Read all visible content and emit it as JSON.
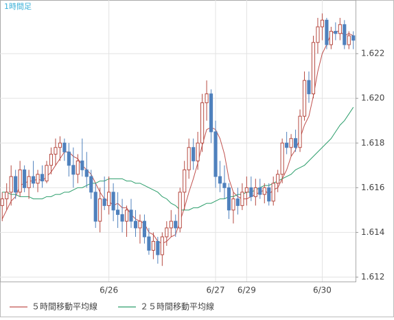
{
  "chart_data": {
    "type": "candlestick",
    "title": "1時間足",
    "categories": [
      null,
      null,
      null,
      null,
      null,
      null,
      null,
      null,
      null,
      null,
      null,
      null,
      null,
      null,
      null,
      null,
      null,
      null,
      null,
      null,
      null,
      null,
      null,
      null,
      "6/26",
      null,
      null,
      null,
      null,
      null,
      null,
      null,
      null,
      null,
      null,
      null,
      null,
      null,
      null,
      null,
      null,
      null,
      null,
      null,
      null,
      null,
      null,
      null,
      "6/27",
      null,
      null,
      null,
      null,
      null,
      null,
      "6/29",
      null,
      null,
      null,
      null,
      null,
      null,
      null,
      null,
      null,
      null,
      null,
      null,
      null,
      null,
      null,
      null,
      "6/30",
      null,
      null,
      null,
      null,
      null,
      null,
      null
    ],
    "open": [
      1.6152,
      1.6155,
      1.6158,
      1.6165,
      1.6158,
      1.6168,
      1.616,
      1.6165,
      1.6162,
      1.6166,
      1.6163,
      1.617,
      1.6175,
      1.6178,
      1.618,
      1.6176,
      1.617,
      1.6166,
      1.6172,
      1.6168,
      1.6165,
      1.6158,
      1.6145,
      1.6155,
      1.6152,
      1.6158,
      1.615,
      1.6148,
      1.6145,
      1.615,
      1.6145,
      1.6142,
      1.6145,
      1.6138,
      1.6132,
      1.6136,
      1.613,
      1.6138,
      1.6142,
      1.6145,
      1.6142,
      1.6158,
      1.6168,
      1.6178,
      1.6172,
      1.618,
      1.6198,
      1.6202,
      1.6185,
      1.6165,
      1.6162,
      1.616,
      1.615,
      1.6155,
      1.6152,
      1.6158,
      1.616,
      1.6156,
      1.616,
      1.6157,
      1.616,
      1.6154,
      1.6162,
      1.6166,
      1.618,
      1.6178,
      1.6182,
      1.6178,
      1.6192,
      1.6208,
      1.6202,
      1.6225,
      1.6232,
      1.6235,
      1.6224,
      1.623,
      1.6229,
      1.6233,
      1.6224,
      1.6228
    ],
    "high": [
      1.6158,
      1.6162,
      1.617,
      1.6168,
      1.6172,
      1.617,
      1.6168,
      1.6172,
      1.6168,
      1.617,
      1.6172,
      1.6178,
      1.6182,
      1.6183,
      1.6182,
      1.618,
      1.6178,
      1.6175,
      1.6182,
      1.6176,
      1.6168,
      1.6162,
      1.616,
      1.6165,
      1.6165,
      1.6162,
      1.6158,
      1.6155,
      1.6152,
      1.6155,
      1.615,
      1.6148,
      1.6148,
      1.6142,
      1.614,
      1.6138,
      1.614,
      1.6145,
      1.615,
      1.6148,
      1.616,
      1.6172,
      1.6182,
      1.6182,
      1.6185,
      1.6202,
      1.6208,
      1.6204,
      1.619,
      1.6172,
      1.617,
      1.6162,
      1.6158,
      1.616,
      1.6162,
      1.6165,
      1.6165,
      1.6164,
      1.6164,
      1.6162,
      1.6162,
      1.6165,
      1.6168,
      1.6182,
      1.6185,
      1.6184,
      1.6186,
      1.6195,
      1.6212,
      1.6212,
      1.6228,
      1.6236,
      1.6238,
      1.6236,
      1.6232,
      1.6234,
      1.6236,
      1.6235,
      1.623,
      1.623
    ],
    "low": [
      1.6145,
      1.615,
      1.6152,
      1.6155,
      1.6156,
      1.6158,
      1.6155,
      1.616,
      1.6158,
      1.616,
      1.6162,
      1.6166,
      1.617,
      1.6172,
      1.6172,
      1.6165,
      1.616,
      1.6162,
      1.6165,
      1.616,
      1.6155,
      1.6142,
      1.614,
      1.615,
      1.6148,
      1.6145,
      1.6142,
      1.614,
      1.6138,
      1.6142,
      1.6138,
      1.6135,
      1.6135,
      1.613,
      1.6128,
      1.6126,
      1.6125,
      1.6134,
      1.6138,
      1.6138,
      1.614,
      1.615,
      1.6164,
      1.6168,
      1.6168,
      1.6176,
      1.619,
      1.618,
      1.616,
      1.6158,
      1.6155,
      1.6146,
      1.6144,
      1.6148,
      1.615,
      1.6152,
      1.6154,
      1.6152,
      1.6155,
      1.6153,
      1.6152,
      1.6152,
      1.6158,
      1.6162,
      1.6175,
      1.6174,
      1.6176,
      1.6176,
      1.619,
      1.6198,
      1.62,
      1.622,
      1.6226,
      1.6222,
      1.6222,
      1.6226,
      1.6226,
      1.6222,
      1.6222,
      1.6222
    ],
    "close": [
      1.6155,
      1.6158,
      1.6165,
      1.6158,
      1.6168,
      1.616,
      1.6165,
      1.6162,
      1.6166,
      1.6163,
      1.617,
      1.6175,
      1.6178,
      1.618,
      1.6176,
      1.617,
      1.6166,
      1.6172,
      1.6168,
      1.6165,
      1.6158,
      1.6145,
      1.6155,
      1.6152,
      1.6158,
      1.615,
      1.6148,
      1.6145,
      1.615,
      1.6145,
      1.6142,
      1.6145,
      1.6138,
      1.6132,
      1.6136,
      1.613,
      1.6138,
      1.6142,
      1.6145,
      1.6142,
      1.6158,
      1.6168,
      1.6178,
      1.6172,
      1.618,
      1.6198,
      1.6202,
      1.6185,
      1.6165,
      1.6162,
      1.616,
      1.615,
      1.6155,
      1.6152,
      1.6158,
      1.616,
      1.6156,
      1.616,
      1.6157,
      1.616,
      1.6154,
      1.6162,
      1.6166,
      1.618,
      1.6178,
      1.6182,
      1.6178,
      1.6192,
      1.6208,
      1.6202,
      1.6225,
      1.6232,
      1.6235,
      1.6224,
      1.623,
      1.6229,
      1.6233,
      1.6224,
      1.6228,
      1.6226
    ],
    "up_color": "#b5483f",
    "down_color": "#4f81bd",
    "series": [
      {
        "name": "５時間移動平均線",
        "color": "#c0504d",
        "values": [
          1.6146,
          1.615,
          1.6154,
          1.6156,
          1.6161,
          1.6162,
          1.6163,
          1.6163,
          1.6164,
          1.6163,
          1.6165,
          1.6167,
          1.617,
          1.6173,
          1.6176,
          1.6176,
          1.6174,
          1.6173,
          1.617,
          1.6168,
          1.6166,
          1.6162,
          1.6158,
          1.6155,
          1.6154,
          1.6152,
          1.6153,
          1.6151,
          1.6151,
          1.6148,
          1.6146,
          1.6145,
          1.6144,
          1.614,
          1.6139,
          1.6136,
          1.6135,
          1.6136,
          1.6138,
          1.6139,
          1.6145,
          1.6151,
          1.6158,
          1.6164,
          1.6171,
          1.6179,
          1.6186,
          1.6187,
          1.6186,
          1.6182,
          1.6175,
          1.6164,
          1.6158,
          1.6156,
          1.6155,
          1.6155,
          1.6156,
          1.6157,
          1.6158,
          1.6159,
          1.6157,
          1.6159,
          1.616,
          1.6164,
          1.6168,
          1.6174,
          1.6177,
          1.6182,
          1.6188,
          1.6192,
          1.6201,
          1.6212,
          1.622,
          1.6224,
          1.6229,
          1.623,
          1.623,
          1.6228,
          1.6229,
          1.6228
        ]
      },
      {
        "name": "２５時間移動平均線",
        "color": "#2a9d6a",
        "values": [
          1.6158,
          1.6158,
          1.6157,
          1.6157,
          1.6156,
          1.6156,
          1.6156,
          1.6155,
          1.6155,
          1.6155,
          1.6156,
          1.6156,
          1.6157,
          1.6157,
          1.6158,
          1.6158,
          1.6159,
          1.616,
          1.616,
          1.6161,
          1.6162,
          1.6162,
          1.6163,
          1.6163,
          1.6164,
          1.6164,
          1.6164,
          1.6164,
          1.6163,
          1.6163,
          1.6162,
          1.6162,
          1.6161,
          1.616,
          1.6159,
          1.6158,
          1.6156,
          1.6155,
          1.6153,
          1.6152,
          1.615,
          1.615,
          1.615,
          1.6151,
          1.6151,
          1.6152,
          1.6153,
          1.6153,
          1.6154,
          1.6155,
          1.6155,
          1.6156,
          1.6156,
          1.6157,
          1.6157,
          1.6158,
          1.6158,
          1.6159,
          1.616,
          1.6161,
          1.6161,
          1.6162,
          1.6163,
          1.6164,
          1.6165,
          1.6166,
          1.6168,
          1.6169,
          1.617,
          1.6172,
          1.6174,
          1.6176,
          1.6178,
          1.618,
          1.6182,
          1.6185,
          1.6188,
          1.619,
          1.6193,
          1.6196
        ]
      }
    ],
    "ylim": [
      1.6118,
      1.6244
    ],
    "yticks": [
      1.612,
      1.614,
      1.616,
      1.618,
      {
        "value": 1.62,
        "label": "1.620"
      },
      1.622
    ],
    "grid": true
  }
}
